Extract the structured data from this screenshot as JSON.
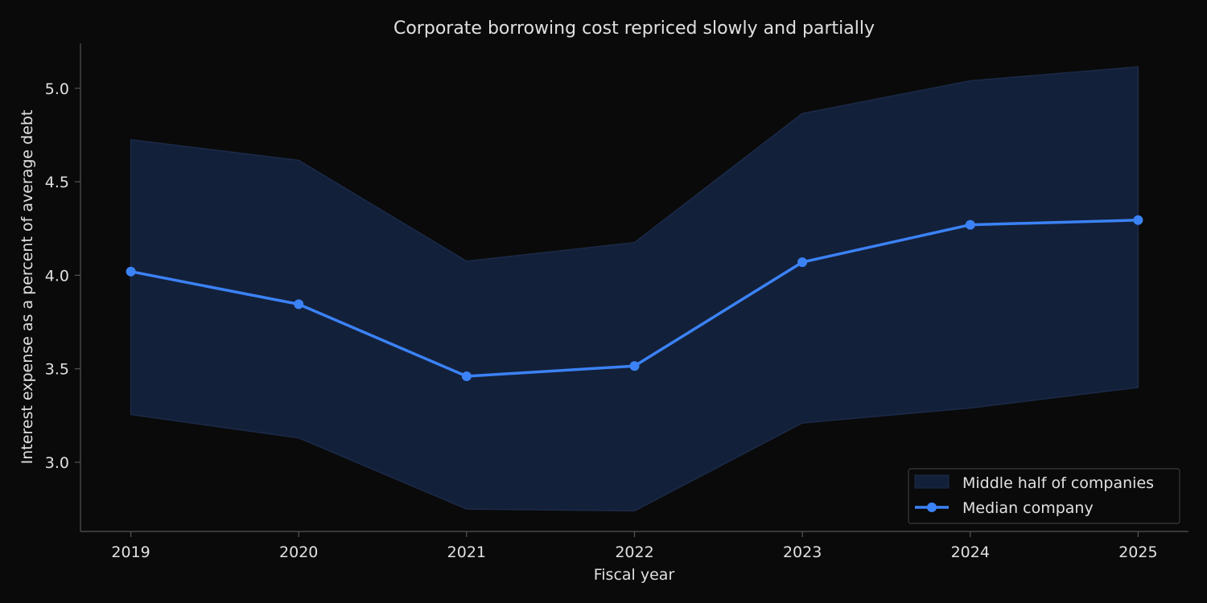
{
  "chart_data": {
    "type": "line",
    "title": "Corporate borrowing cost repriced slowly and partially",
    "xlabel": "Fiscal year",
    "ylabel": "Interest expense as a percent of average debt",
    "x": [
      2019,
      2020,
      2021,
      2022,
      2023,
      2024,
      2025
    ],
    "x_tick_labels": [
      "2019",
      "2020",
      "2021",
      "2022",
      "2023",
      "2024",
      "2025"
    ],
    "y_ticks": [
      3.0,
      3.5,
      4.0,
      4.5,
      5.0
    ],
    "y_tick_labels": [
      "3.0",
      "3.5",
      "4.0",
      "4.5",
      "5.0"
    ],
    "xlim": [
      2018.7,
      2025.3
    ],
    "ylim": [
      2.63,
      5.24
    ],
    "grid": false,
    "legend_position": "lower-right",
    "series": [
      {
        "name": "Median company",
        "kind": "line",
        "color": "#3b82f6",
        "values": [
          4.02,
          3.845,
          3.46,
          3.515,
          4.07,
          4.27,
          4.295
        ]
      }
    ],
    "band": {
      "name": "Middle half of companies",
      "kind": "area",
      "color": "#13203a",
      "lower": [
        3.255,
        3.13,
        2.75,
        2.74,
        3.21,
        3.29,
        3.4
      ],
      "upper": [
        4.725,
        4.615,
        4.075,
        4.175,
        4.865,
        5.04,
        5.115
      ]
    }
  },
  "colors": {
    "background": "#0a0a0a",
    "axis": "#555555",
    "text": "#e0e0e0",
    "median_line": "#3b82f6",
    "band_fill": "#13203a",
    "band_edge": "#1b2a48",
    "legend_bg": "#0a0a0a",
    "legend_border": "#3a3a3a"
  }
}
